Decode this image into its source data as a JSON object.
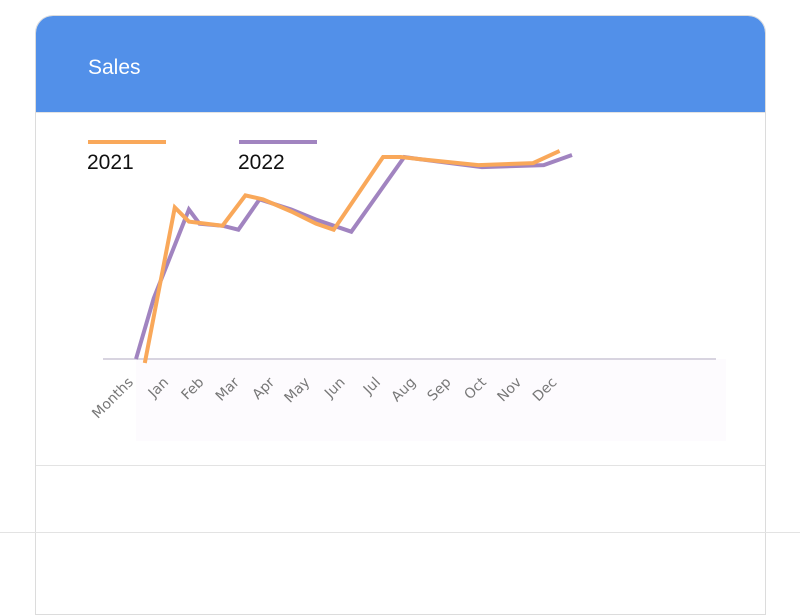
{
  "card": {
    "title": "Sales"
  },
  "colors": {
    "header": "#5290e9",
    "series_2021": "#f9a85a",
    "series_2022": "#a184c0",
    "axis": "#d8d4e0"
  },
  "chart_data": {
    "type": "line",
    "title": "",
    "xlabel": "",
    "ylabel": "",
    "x_ticks": [
      "Months",
      "Jan",
      "Feb",
      "Mar",
      "Apr",
      "May",
      "Jun",
      "Jul",
      "Aug",
      "Sep",
      "Oct",
      "Nov",
      "Dec"
    ],
    "y_range": [
      0,
      100
    ],
    "grid": false,
    "legend": "top-left",
    "series": [
      {
        "name": "2021",
        "color": "#f9a85a",
        "points": [
          [
            0.25,
            -2
          ],
          [
            1.1,
            75
          ],
          [
            1.5,
            68
          ],
          [
            2.45,
            66
          ],
          [
            3.1,
            81
          ],
          [
            3.6,
            79
          ],
          [
            4.4,
            73
          ],
          [
            5.1,
            67
          ],
          [
            5.6,
            64
          ],
          [
            7.0,
            100
          ],
          [
            7.5,
            100
          ],
          [
            8.0,
            99
          ],
          [
            9.7,
            96
          ],
          [
            11.25,
            97
          ],
          [
            12.0,
            103
          ]
        ]
      },
      {
        "name": "2022",
        "color": "#a184c0",
        "points": [
          [
            0.0,
            0
          ],
          [
            0.5,
            30
          ],
          [
            1.5,
            74
          ],
          [
            1.8,
            67
          ],
          [
            2.45,
            66
          ],
          [
            2.9,
            64
          ],
          [
            3.5,
            79
          ],
          [
            4.4,
            74
          ],
          [
            5.1,
            69
          ],
          [
            6.1,
            63
          ],
          [
            7.6,
            100
          ],
          [
            8.0,
            99
          ],
          [
            9.8,
            95
          ],
          [
            11.55,
            96
          ],
          [
            12.35,
            101
          ]
        ]
      }
    ]
  }
}
